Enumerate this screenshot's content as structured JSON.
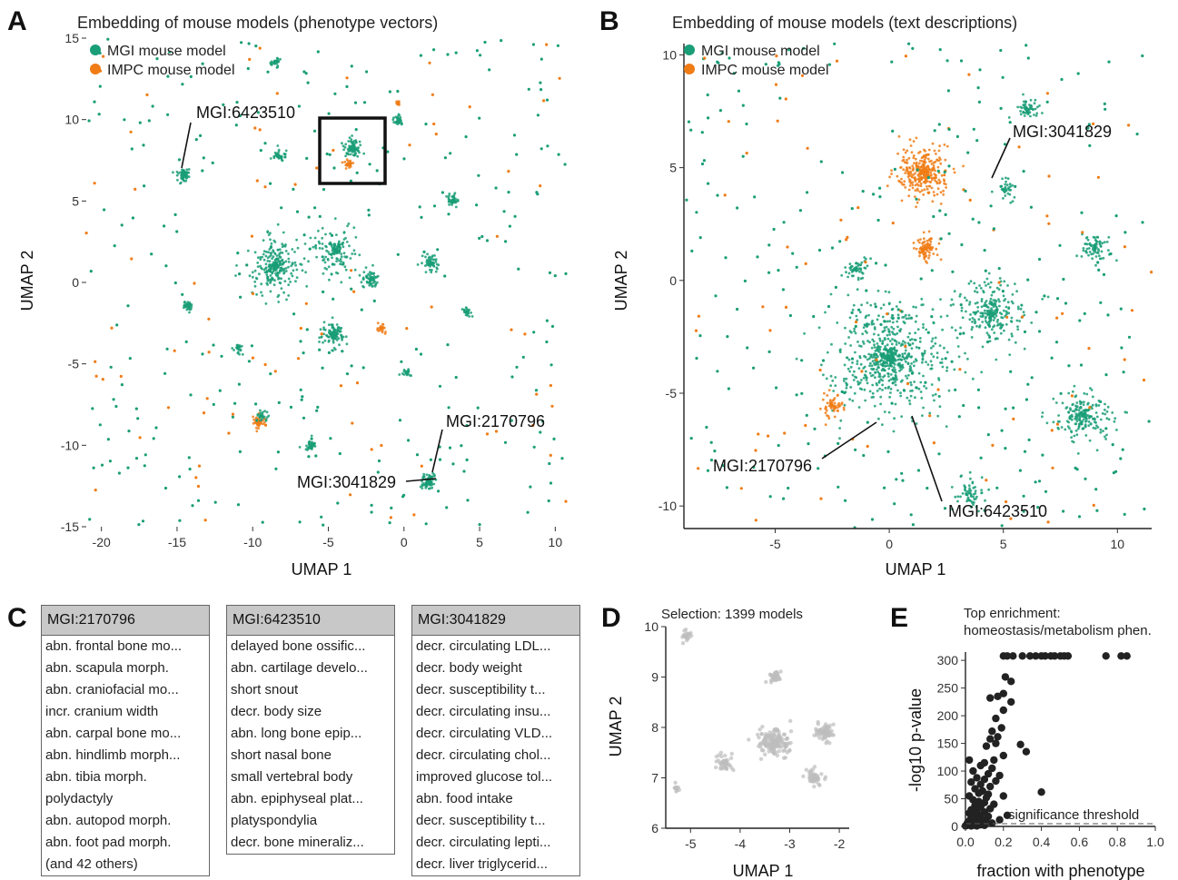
{
  "panels": {
    "A": "A",
    "B": "B",
    "C": "C",
    "D": "D",
    "E": "E"
  },
  "colors": {
    "mgi": "#1a9e77",
    "impc": "#f07c16",
    "gray": "#bdbdbd",
    "black": "#222222"
  },
  "chart_data": [
    {
      "id": "A",
      "type": "scatter",
      "title": "Embedding of mouse models (phenotype vectors)",
      "xlabel": "UMAP 1",
      "ylabel": "UMAP 2",
      "xlim": [
        -21,
        11
      ],
      "ylim": [
        -15,
        15
      ],
      "xticks": [
        "-20",
        "-15",
        "-10",
        "-5",
        "0",
        "5",
        "10"
      ],
      "yticks": [
        "15",
        "10",
        "5",
        "0",
        "-5",
        "-10",
        "-15"
      ],
      "legend": [
        "MGI mouse model",
        "IMPC mouse model"
      ],
      "legend_position": "top-left",
      "selection_box": {
        "x": [
          -5.5,
          -1.5
        ],
        "y": [
          6,
          10
        ]
      },
      "annotations": [
        {
          "label": "MGI:6423510",
          "point": [
            -14.3,
            6.9
          ]
        },
        {
          "label": "MGI:2170796",
          "point": [
            1.5,
            -11.8
          ]
        },
        {
          "label": "MGI:3041829",
          "point": [
            1.8,
            -12.4
          ]
        }
      ],
      "clusters": [
        {
          "x": -8.5,
          "y": 1,
          "r": 3.2,
          "c": "mgi",
          "n": 260
        },
        {
          "x": -4.5,
          "y": 2,
          "r": 2.5,
          "c": "mgi",
          "n": 150
        },
        {
          "x": -4.6,
          "y": -3.2,
          "r": 1.4,
          "c": "mgi",
          "n": 120
        },
        {
          "x": -14.6,
          "y": 6.6,
          "r": 0.8,
          "c": "mgi",
          "n": 70
        },
        {
          "x": -14.3,
          "y": -1.4,
          "r": 0.6,
          "c": "mgi",
          "n": 40
        },
        {
          "x": -8.3,
          "y": 7.8,
          "r": 0.8,
          "c": "mgi",
          "n": 40
        },
        {
          "x": -3.4,
          "y": 8.2,
          "r": 1.2,
          "c": "mgi",
          "n": 80
        },
        {
          "x": -8.5,
          "y": 13.5,
          "r": 0.6,
          "c": "mgi",
          "n": 30
        },
        {
          "x": -9.6,
          "y": -8.6,
          "r": 0.8,
          "c": "impc",
          "n": 50
        },
        {
          "x": -9.4,
          "y": -8.2,
          "r": 0.8,
          "c": "mgi",
          "n": 30
        },
        {
          "x": -6.2,
          "y": -10,
          "r": 0.8,
          "c": "mgi",
          "n": 40
        },
        {
          "x": 0.2,
          "y": -5.6,
          "r": 0.6,
          "c": "mgi",
          "n": 25
        },
        {
          "x": 1.6,
          "y": -12.2,
          "r": 0.8,
          "c": "mgi",
          "n": 90
        },
        {
          "x": -0.4,
          "y": 10,
          "r": 0.6,
          "c": "mgi",
          "n": 40
        },
        {
          "x": 3.2,
          "y": 5,
          "r": 0.9,
          "c": "mgi",
          "n": 50
        },
        {
          "x": 4.2,
          "y": -1.8,
          "r": 0.6,
          "c": "mgi",
          "n": 25
        },
        {
          "x": -2.2,
          "y": 0.2,
          "r": 1.2,
          "c": "mgi",
          "n": 60
        },
        {
          "x": 1.8,
          "y": 1.2,
          "r": 1.2,
          "c": "mgi",
          "n": 60
        },
        {
          "x": -11,
          "y": -4,
          "r": 0.7,
          "c": "mgi",
          "n": 25
        },
        {
          "x": -3.6,
          "y": 7.3,
          "r": 0.6,
          "c": "impc",
          "n": 30
        },
        {
          "x": -1.5,
          "y": -2.8,
          "r": 0.5,
          "c": "impc",
          "n": 25
        },
        {
          "x": -0.4,
          "y": 11,
          "r": 0.4,
          "c": "impc",
          "n": 20
        }
      ]
    },
    {
      "id": "B",
      "type": "scatter",
      "title": "Embedding of mouse models (text descriptions)",
      "xlabel": "UMAP 1",
      "ylabel": "UMAP 2",
      "xlim": [
        -9,
        11.5
      ],
      "ylim": [
        -11,
        10.5
      ],
      "xticks": [
        "-5",
        "0",
        "5",
        "10"
      ],
      "yticks": [
        "10",
        "5",
        "0",
        "-5",
        "-10"
      ],
      "legend": [
        "MGI mouse model",
        "IMPC mouse model"
      ],
      "legend_position": "top-left",
      "annotations": [
        {
          "label": "MGI:3041829",
          "point": [
            4.5,
            4.2
          ]
        },
        {
          "label": "MGI:2170796",
          "point": [
            -0.6,
            -6.5
          ]
        },
        {
          "label": "MGI:6423510",
          "point": [
            1,
            -6.2
          ]
        }
      ],
      "clusters": [
        {
          "x": 1.5,
          "y": 4.8,
          "r": 2.2,
          "c": "impc",
          "n": 300
        },
        {
          "x": 1.6,
          "y": 1.4,
          "r": 1.0,
          "c": "impc",
          "n": 90
        },
        {
          "x": 0,
          "y": -3.5,
          "r": 4.8,
          "c": "mgi",
          "n": 650
        },
        {
          "x": 4.5,
          "y": -1.5,
          "r": 3,
          "c": "mgi",
          "n": 260
        },
        {
          "x": 8.5,
          "y": -6,
          "r": 2.2,
          "c": "mgi",
          "n": 200
        },
        {
          "x": -2.5,
          "y": -5.5,
          "r": 1,
          "c": "impc",
          "n": 60
        },
        {
          "x": 6,
          "y": 7.6,
          "r": 0.9,
          "c": "mgi",
          "n": 60
        },
        {
          "x": 9,
          "y": 1.5,
          "r": 1.3,
          "c": "mgi",
          "n": 80
        },
        {
          "x": 3.5,
          "y": -9.5,
          "r": 1.4,
          "c": "mgi",
          "n": 60
        },
        {
          "x": -1.5,
          "y": 0.5,
          "r": 1.0,
          "c": "mgi",
          "n": 60
        },
        {
          "x": 5,
          "y": 4,
          "r": 0.8,
          "c": "mgi",
          "n": 40
        }
      ]
    },
    {
      "id": "D",
      "type": "scatter",
      "title": "Selection: 1399 models",
      "xlabel": "UMAP 1",
      "ylabel": "UMAP 2",
      "xlim": [
        -5.5,
        -1.8
      ],
      "ylim": [
        6,
        10
      ],
      "xticks": [
        "-5",
        "-4",
        "-3",
        "-2"
      ],
      "yticks": [
        "10",
        "9",
        "8",
        "7",
        "6"
      ],
      "clusters": [
        {
          "x": -3.3,
          "y": 7.7,
          "r": 0.55,
          "c": "gray",
          "n": 180
        },
        {
          "x": -2.3,
          "y": 7.9,
          "r": 0.35,
          "c": "gray",
          "n": 90
        },
        {
          "x": -2.5,
          "y": 7,
          "r": 0.3,
          "c": "gray",
          "n": 60
        },
        {
          "x": -3.3,
          "y": 9,
          "r": 0.25,
          "c": "gray",
          "n": 40
        },
        {
          "x": -4.3,
          "y": 7.3,
          "r": 0.35,
          "c": "gray",
          "n": 50
        },
        {
          "x": -5.1,
          "y": 9.8,
          "r": 0.2,
          "c": "gray",
          "n": 25
        },
        {
          "x": -5.3,
          "y": 6.8,
          "r": 0.15,
          "c": "gray",
          "n": 12
        }
      ]
    },
    {
      "id": "E",
      "type": "scatter",
      "title": "Top enrichment:",
      "subtitle": "homeostasis/metabolism phen.",
      "xlabel": "fraction with phenotype",
      "ylabel": "-log10 p-value",
      "xlim": [
        0,
        1
      ],
      "ylim": [
        0,
        315
      ],
      "xticks": [
        "0.0",
        "0.2",
        "0.4",
        "0.6",
        "0.8",
        "1.0"
      ],
      "yticks": [
        "300",
        "250",
        "200",
        "150",
        "100",
        "50",
        "0"
      ],
      "threshold": 5,
      "threshold_label": "significance threshold",
      "points": [
        [
          0.2,
          308
        ],
        [
          0.22,
          308
        ],
        [
          0.25,
          308
        ],
        [
          0.3,
          308
        ],
        [
          0.34,
          308
        ],
        [
          0.37,
          308
        ],
        [
          0.4,
          308
        ],
        [
          0.42,
          308
        ],
        [
          0.45,
          308
        ],
        [
          0.47,
          308
        ],
        [
          0.5,
          308
        ],
        [
          0.52,
          308
        ],
        [
          0.54,
          308
        ],
        [
          0.74,
          308
        ],
        [
          0.82,
          308
        ],
        [
          0.85,
          308
        ],
        [
          0.21,
          270
        ],
        [
          0.24,
          262
        ],
        [
          0.2,
          240
        ],
        [
          0.17,
          235
        ],
        [
          0.13,
          232
        ],
        [
          0.24,
          225
        ],
        [
          0.2,
          210
        ],
        [
          0.16,
          195
        ],
        [
          0.19,
          178
        ],
        [
          0.14,
          172
        ],
        [
          0.17,
          162
        ],
        [
          0.13,
          158
        ],
        [
          0.16,
          150
        ],
        [
          0.11,
          145
        ],
        [
          0.29,
          148
        ],
        [
          0.32,
          135
        ],
        [
          0.2,
          128
        ],
        [
          0.15,
          120
        ],
        [
          0.1,
          115
        ],
        [
          0.02,
          120
        ],
        [
          0.08,
          110
        ],
        [
          0.14,
          105
        ],
        [
          0.04,
          100
        ],
        [
          0.12,
          95
        ],
        [
          0.18,
          92
        ],
        [
          0.06,
          88
        ],
        [
          0.1,
          85
        ],
        [
          0.16,
          82
        ],
        [
          0.03,
          80
        ],
        [
          0.08,
          76
        ],
        [
          0.13,
          72
        ],
        [
          0.05,
          68
        ],
        [
          0.09,
          64
        ],
        [
          0.07,
          60
        ],
        [
          0.12,
          58
        ],
        [
          0.02,
          55
        ],
        [
          0.11,
          52
        ],
        [
          0.04,
          48
        ],
        [
          0.07,
          45
        ],
        [
          0.1,
          43
        ],
        [
          0.4,
          62
        ],
        [
          0.2,
          55
        ],
        [
          0.15,
          40
        ],
        [
          0.05,
          38
        ],
        [
          0.08,
          35
        ],
        [
          0.13,
          32
        ],
        [
          0.03,
          30
        ],
        [
          0.06,
          28
        ],
        [
          0.1,
          26
        ],
        [
          0.02,
          24
        ],
        [
          0.05,
          22
        ],
        [
          0.08,
          20
        ],
        [
          0.12,
          18
        ],
        [
          0.03,
          16
        ],
        [
          0.06,
          14
        ],
        [
          0.09,
          12
        ],
        [
          0.02,
          10
        ],
        [
          0.04,
          9
        ],
        [
          0.07,
          8
        ],
        [
          0.11,
          7
        ],
        [
          0.01,
          6
        ],
        [
          0.03,
          5
        ],
        [
          0.05,
          4
        ],
        [
          0.02,
          3
        ],
        [
          0.08,
          3
        ],
        [
          0.14,
          6
        ],
        [
          0.18,
          12
        ],
        [
          0.22,
          20
        ],
        [
          0.01,
          2
        ],
        [
          0.04,
          2
        ],
        [
          0.06,
          1
        ],
        [
          0.1,
          2
        ],
        [
          0.0,
          1
        ],
        [
          0.03,
          1
        ]
      ]
    }
  ],
  "table_C": [
    {
      "header": "MGI:2170796",
      "rows": [
        "abn. frontal bone mo...",
        "abn. scapula morph.",
        "abn. craniofacial mo...",
        "incr. cranium width",
        "abn. carpal bone mo...",
        "abn. hindlimb morph...",
        "abn. tibia morph.",
        "polydactyly",
        "abn. autopod morph.",
        "abn. foot pad morph.",
        "(and 42 others)"
      ]
    },
    {
      "header": "MGI:6423510",
      "rows": [
        "delayed bone ossific...",
        "abn. cartilage develo...",
        "short snout",
        "decr. body size",
        "abn. long bone epip...",
        "short nasal bone",
        "small vertebral body",
        "abn. epiphyseal plat...",
        "platyspondylia",
        "decr. bone mineraliz..."
      ]
    },
    {
      "header": "MGI:3041829",
      "rows": [
        "decr. circulating LDL...",
        "decr. body weight",
        "decr. susceptibility t...",
        "decr. circulating insu...",
        "decr. circulating VLD...",
        "decr. circulating chol...",
        "improved glucose tol...",
        "abn. food intake",
        "decr. susceptibility t...",
        "decr. circulating lepti...",
        "decr. liver triglycerid..."
      ]
    }
  ]
}
